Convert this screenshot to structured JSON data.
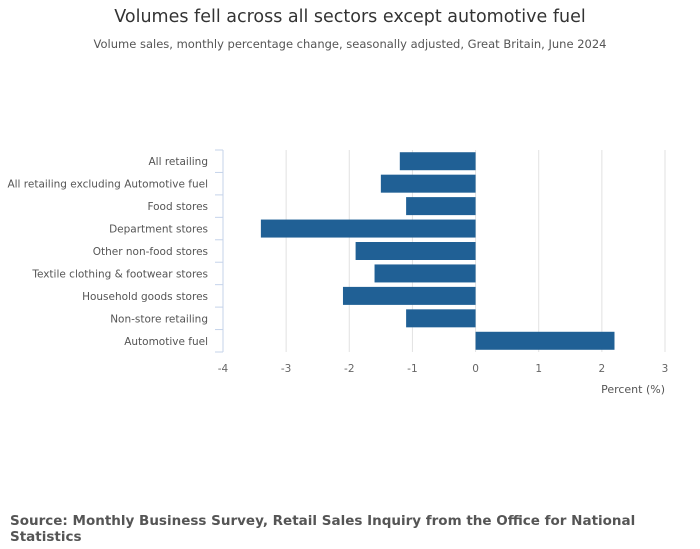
{
  "chart_data": {
    "type": "bar",
    "orientation": "horizontal",
    "title": "Volumes fell across all sectors except automotive fuel",
    "subtitle": "Volume sales, monthly percentage change, seasonally adjusted, Great Britain, June 2024",
    "categories": [
      "All retailing",
      "All retailing excluding Automotive fuel",
      "Food stores",
      "Department stores",
      "Other non-food stores",
      "Textile clothing & footwear stores",
      "Household goods stores",
      "Non-store retailing",
      "Automotive fuel"
    ],
    "values": [
      -1.2,
      -1.5,
      -1.1,
      -3.4,
      -1.9,
      -1.6,
      -2.1,
      -1.1,
      2.2
    ],
    "xlabel": "Percent (%)",
    "ylabel": "",
    "xlim": [
      -4,
      3
    ],
    "xticks": [
      "-4",
      "-3",
      "-2",
      "-1",
      "0",
      "1",
      "2",
      "3"
    ],
    "grid": true,
    "legend": "none",
    "bar_color": "#206095",
    "source": "Source: Monthly Business Survey, Retail Sales Inquiry from the Office for National Statistics"
  }
}
